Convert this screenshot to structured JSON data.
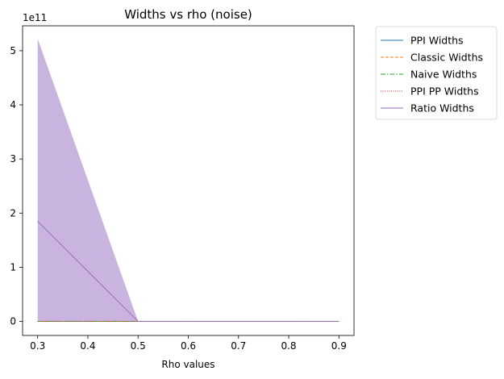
{
  "chart_data": {
    "type": "line",
    "title": "Widths vs rho (noise)",
    "xlabel": "Rho values",
    "ylabel": "",
    "offset_label": "1e11",
    "x": [
      0.3,
      0.5,
      0.7,
      0.9
    ],
    "xlim": [
      0.27,
      0.93
    ],
    "ylim": [
      -0.26,
      5.46
    ],
    "xticks": [
      0.3,
      0.4,
      0.5,
      0.6,
      0.7,
      0.8,
      0.9
    ],
    "xtick_labels": [
      "0.3",
      "0.4",
      "0.5",
      "0.6",
      "0.7",
      "0.8",
      "0.9"
    ],
    "yticks": [
      0,
      1,
      2,
      3,
      4,
      5
    ],
    "ytick_labels": [
      "0",
      "1",
      "2",
      "3",
      "4",
      "5"
    ],
    "grid": false,
    "legend_position": "outside-top-right",
    "series": [
      {
        "name": "PPI Widths",
        "values": [
          0,
          0,
          0,
          0
        ],
        "color": "#1f77b4",
        "dash": "solid"
      },
      {
        "name": "Classic Widths",
        "values": [
          0,
          0,
          0,
          0
        ],
        "color": "#ff7f0e",
        "dash": "dashed"
      },
      {
        "name": "Naive Widths",
        "values": [
          0,
          0,
          0,
          0
        ],
        "color": "#2ca02c",
        "dash": "dashdot"
      },
      {
        "name": "PPI PP Widths",
        "values": [
          0,
          0,
          0,
          0
        ],
        "color": "#d62728",
        "dash": "dotted"
      },
      {
        "name": "Ratio Widths",
        "values": [
          1.85,
          0,
          0,
          0
        ],
        "color": "#9467bd",
        "dash": "solid",
        "band_upper": [
          5.22,
          0,
          0,
          0
        ],
        "band_lower": [
          0,
          0,
          0,
          0
        ],
        "band_color": "#c8b4de"
      }
    ]
  }
}
